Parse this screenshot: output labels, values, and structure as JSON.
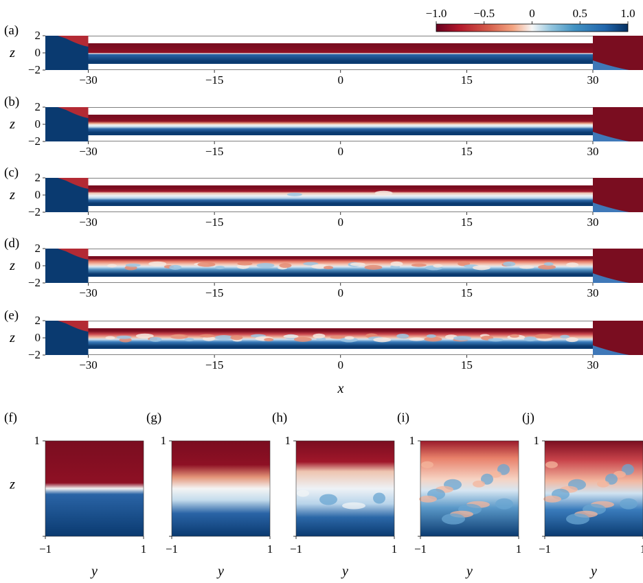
{
  "colorbar": {
    "ticks": [
      "−1.0",
      "−0.5",
      "0",
      "0.5",
      "1.0"
    ],
    "colors": {
      "low": "#67001f",
      "mid": "#f7f7f7",
      "high": "#053061"
    }
  },
  "channel_panels": [
    {
      "label": "(a)",
      "tag": "a",
      "stage": 0
    },
    {
      "label": "(b)",
      "tag": "b",
      "stage": 1
    },
    {
      "label": "(c)",
      "tag": "c",
      "stage": 2
    },
    {
      "label": "(d)",
      "tag": "d",
      "stage": 3
    },
    {
      "label": "(e)",
      "tag": "e",
      "stage": 4
    }
  ],
  "channel_axes": {
    "z_label": "z",
    "z_ticks": [
      "2",
      "0",
      "−2"
    ],
    "x_ticks": [
      "−30",
      "−15",
      "0",
      "15",
      "30"
    ],
    "x_label": "x"
  },
  "cross_panels": [
    {
      "label": "(f)",
      "tag": "f",
      "stage": 0
    },
    {
      "label": "(g)",
      "tag": "g",
      "stage": 1
    },
    {
      "label": "(h)",
      "tag": "h",
      "stage": 2
    },
    {
      "label": "(i)",
      "tag": "i",
      "stage": 3
    },
    {
      "label": "(j)",
      "tag": "j",
      "stage": 4
    }
  ],
  "cross_axes": {
    "z_label": "z",
    "y_label": "y",
    "z_top_tick": "1",
    "y_left_tick": "−1",
    "y_right_tick": "1"
  }
}
